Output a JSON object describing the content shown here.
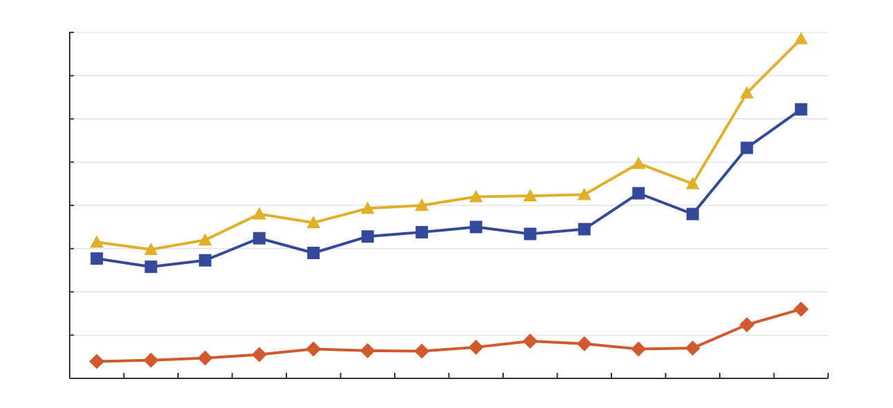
{
  "chart_data": {
    "type": "line",
    "title": "",
    "xlabel": "",
    "ylabel": "",
    "x": [
      1,
      2,
      3,
      4,
      5,
      6,
      7,
      8,
      9,
      10,
      11,
      12,
      13,
      14
    ],
    "ylim": [
      0,
      8
    ],
    "yticks": [
      0,
      1,
      2,
      3,
      4,
      5,
      6,
      7,
      8
    ],
    "grid": true,
    "legend": "none",
    "series": [
      {
        "marker": "triangle",
        "color": "#e0b02a",
        "values": [
          3.15,
          2.98,
          3.2,
          3.8,
          3.6,
          3.93,
          4.0,
          4.2,
          4.22,
          4.25,
          4.97,
          4.5,
          6.6,
          7.85
        ]
      },
      {
        "marker": "square",
        "color": "#35499a",
        "values": [
          2.77,
          2.58,
          2.73,
          3.24,
          2.9,
          3.28,
          3.38,
          3.5,
          3.34,
          3.45,
          4.28,
          3.8,
          5.33,
          6.22
        ]
      },
      {
        "marker": "diamond",
        "color": "#d05a2d",
        "values": [
          0.39,
          0.42,
          0.47,
          0.55,
          0.68,
          0.64,
          0.63,
          0.72,
          0.86,
          0.8,
          0.68,
          0.7,
          1.24,
          1.6
        ]
      }
    ]
  }
}
